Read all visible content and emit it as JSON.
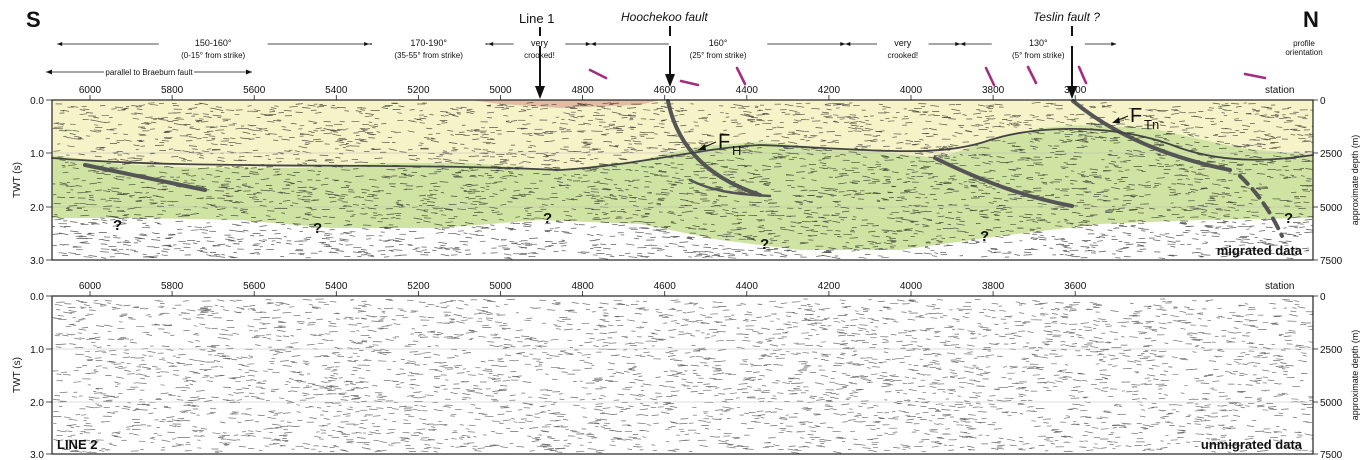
{
  "header": {
    "south_label": "S",
    "north_label": "N",
    "line1_label": "Line 1",
    "hoochekoo_label": "Hoochekoo fault",
    "teslin_label": "Teslin fault ?"
  },
  "orientation_segments": [
    {
      "line1": "150-160°",
      "line2": "(0-15° from strike)",
      "from_station": 6080,
      "to_station": 5320
    },
    {
      "line1": "170-190°",
      "line2": "(35-55° from strike)",
      "from_station": 5320,
      "to_station": 5030
    },
    {
      "line1": "very",
      "line2": "crooked!",
      "from_station": 5030,
      "to_station": 4780
    },
    {
      "line1": "160°",
      "line2": "(25° from strike)",
      "from_station": 4780,
      "to_station": 4160
    },
    {
      "line1": "very",
      "line2": "crooked!",
      "from_station": 4160,
      "to_station": 3880
    },
    {
      "line1": "130°",
      "line2": "(5° from strike)",
      "from_station": 3880,
      "to_station": 3500
    }
  ],
  "profile_orientation_label": [
    "profile",
    "orientation"
  ],
  "braeburn_note": "parallel to Braeburn fault",
  "station_label": "station",
  "station_ticks": [
    "6000",
    "5800",
    "5600",
    "5400",
    "5200",
    "5000",
    "4800",
    "4600",
    "4400",
    "4200",
    "4000",
    "3800",
    "3600"
  ],
  "twt_ticks": [
    "0.0",
    "1.0",
    "2.0",
    "3.0"
  ],
  "depth_ticks": [
    "0",
    "2500",
    "5000",
    "7500"
  ],
  "y_label_left": "TWT (s)",
  "y_label_right": "approximate depth (m)",
  "top_panel": {
    "corner_label": "migrated data",
    "fault_h_main": "F",
    "fault_h_sub": "H",
    "fault_tn_main": "F",
    "fault_tn_sub": "Tn",
    "question_mark": "?"
  },
  "bottom_panel": {
    "line_label": "LINE 2",
    "corner_label": "unmigrated data"
  },
  "colors": {
    "upper_unit": "#f7f3c8",
    "lower_unit": "#cfe3a2",
    "surface_unit": "#e2bda4",
    "orientation_marks": "#a0307f",
    "fault_lines": "#555555"
  }
}
